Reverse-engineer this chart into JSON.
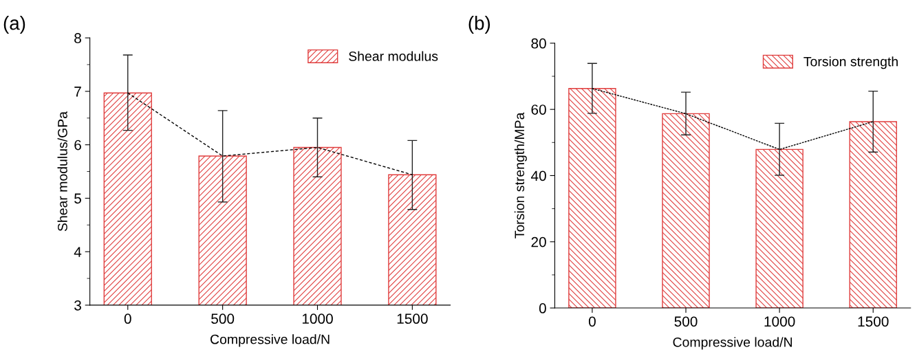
{
  "chart_data": [
    {
      "type": "bar",
      "xlabel": "Compressive load/N",
      "ylabel": "Shear modulus/GPa",
      "annotations": [
        "(a)"
      ],
      "categories": [
        "0",
        "500",
        "1000",
        "1500"
      ],
      "ylim": [
        3,
        8
      ],
      "yticks": [
        3,
        4,
        5,
        6,
        7,
        8
      ],
      "legend": "top right",
      "grid": false,
      "series": [
        {
          "name": "Shear modulus",
          "color": "#e03c3c",
          "values": [
            6.97,
            5.79,
            5.95,
            5.44
          ],
          "errors": [
            [
              6.27,
              7.68
            ],
            [
              4.93,
              6.64
            ],
            [
              5.4,
              6.5
            ],
            [
              4.79,
              6.08
            ]
          ]
        },
        {
          "type": "line",
          "color": "#000000",
          "line_style": "dashed",
          "marker": "none",
          "values": [
            6.97,
            5.79,
            5.95,
            5.44
          ]
        }
      ]
    },
    {
      "type": "bar",
      "xlabel": "Compressive load/N",
      "ylabel": "Torsion strength/MPa",
      "annotations": [
        "(b)"
      ],
      "categories": [
        "0",
        "500",
        "1000",
        "1500"
      ],
      "ylim": [
        0,
        80
      ],
      "yticks": [
        0,
        20,
        40,
        60,
        80
      ],
      "legend": "top right",
      "grid": false,
      "series": [
        {
          "name": "Torsion strength",
          "color": "#e03c3c",
          "values": [
            66.3,
            58.7,
            47.9,
            56.3
          ],
          "errors": [
            [
              58.8,
              73.9
            ],
            [
              52.3,
              65.2
            ],
            [
              40.1,
              55.8
            ],
            [
              47.1,
              65.5
            ]
          ]
        },
        {
          "type": "line",
          "color": "#000000",
          "line_style": "dotted",
          "marker": "none",
          "values": [
            66.3,
            58.7,
            47.9,
            56.3
          ]
        }
      ]
    }
  ]
}
